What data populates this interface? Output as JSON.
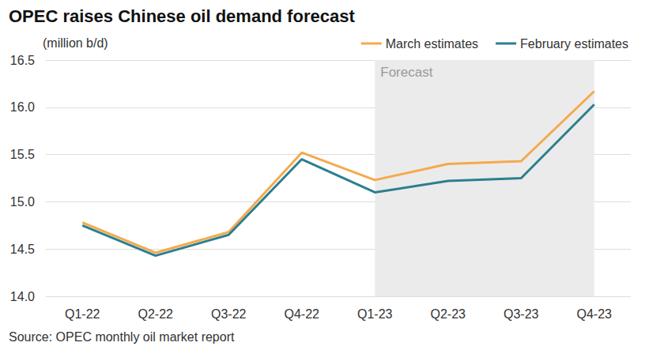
{
  "chart_data": {
    "type": "line",
    "title": "OPEC raises Chinese oil demand forecast",
    "y_label": "(million b/d)",
    "source": "Source: OPEC monthly oil market report",
    "annotations": [
      {
        "text": "Forecast",
        "from": "Q1-23",
        "to": "Q4-23"
      }
    ],
    "categories": [
      "Q1-22",
      "Q2-22",
      "Q3-22",
      "Q4-22",
      "Q1-23",
      "Q2-23",
      "Q3-23",
      "Q4-23"
    ],
    "series": [
      {
        "name": "March estimates",
        "color": "#f5a94c",
        "values": [
          14.78,
          14.46,
          14.68,
          15.52,
          15.23,
          15.4,
          15.43,
          16.17
        ]
      },
      {
        "name": "February estimates",
        "color": "#2b7f8f",
        "values": [
          14.75,
          14.43,
          14.65,
          15.45,
          15.1,
          15.22,
          15.25,
          16.03
        ]
      }
    ],
    "ylim": [
      14,
      16.5
    ],
    "yticks": [
      {
        "value": 14,
        "label": "14.0"
      },
      14.5,
      {
        "value": 15,
        "label": "15.0"
      },
      15.5,
      {
        "value": 16,
        "label": "16.0"
      },
      16.5
    ],
    "grid": true,
    "legend": "top-right"
  }
}
